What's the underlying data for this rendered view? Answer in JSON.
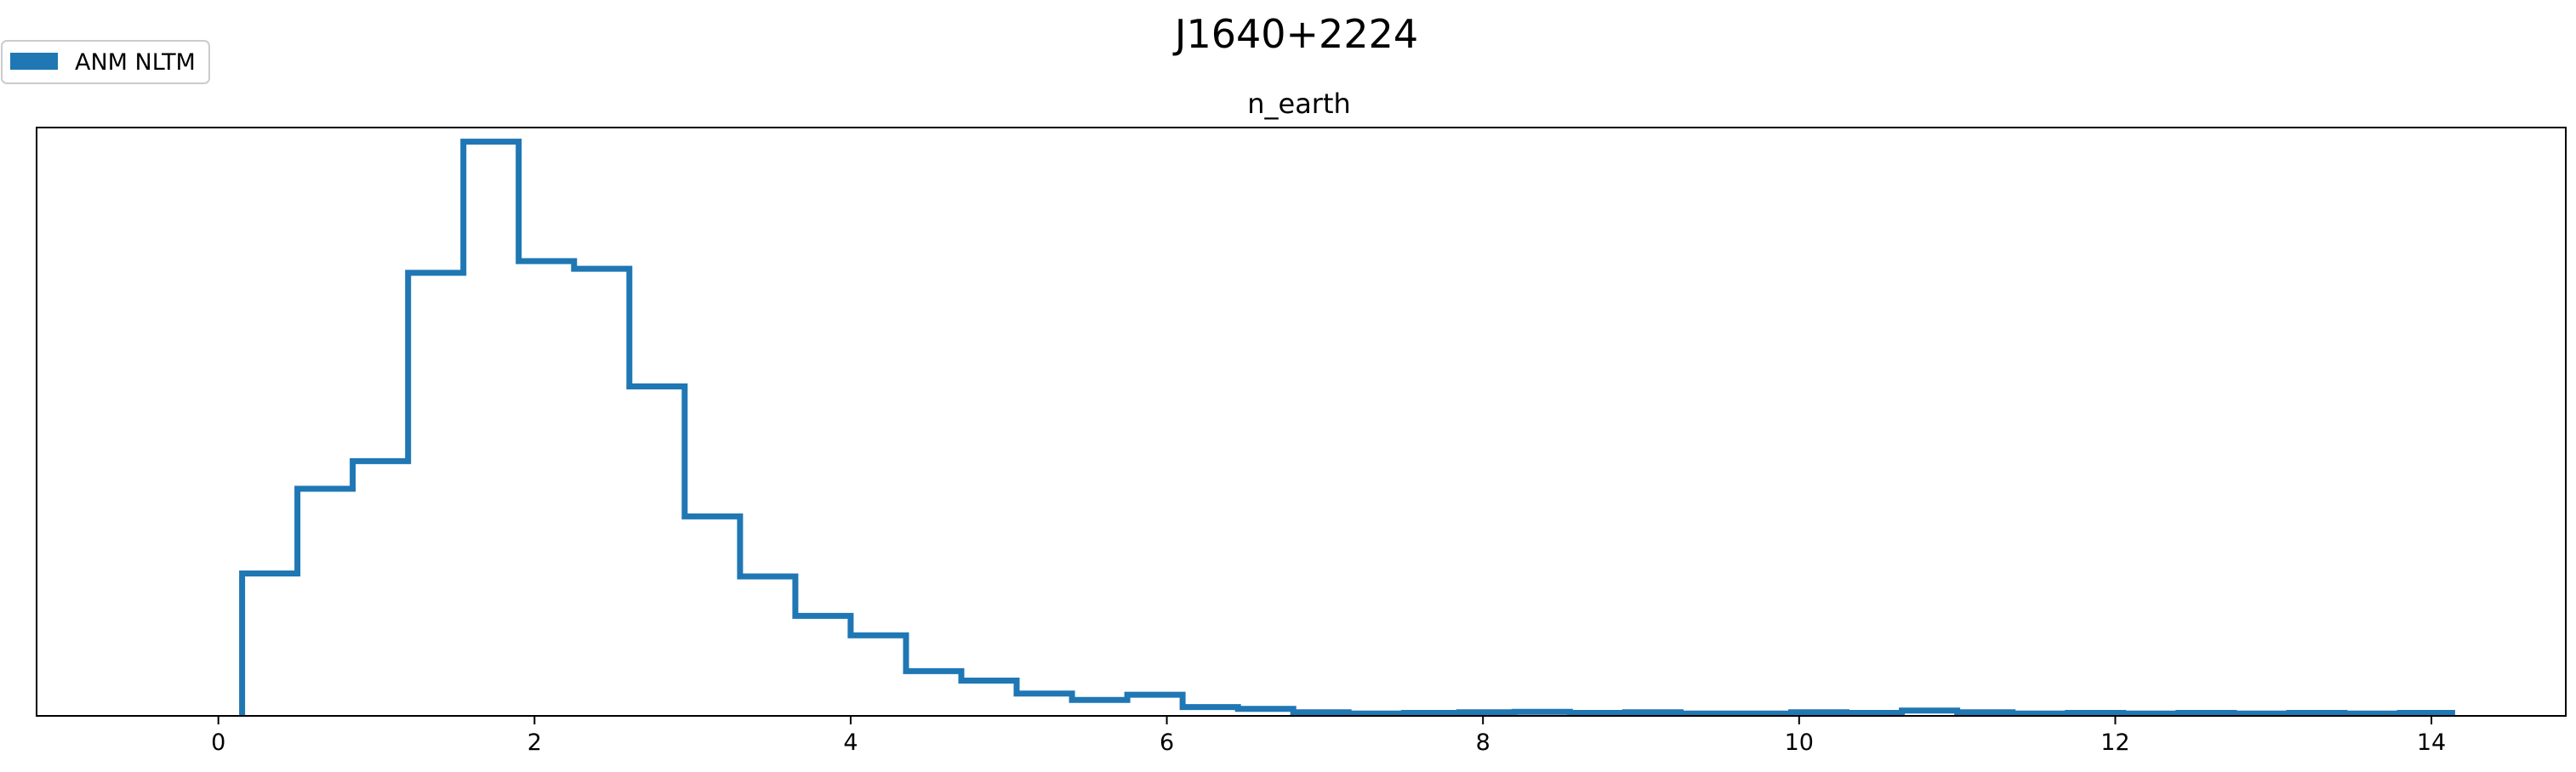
{
  "chart_data": {
    "type": "histogram",
    "title": "J1640+2224",
    "subtitle": "n_earth",
    "xlabel": "",
    "ylabel": "",
    "xlim": [
      -1.15,
      14.85
    ],
    "ylim": [
      0,
      1.0
    ],
    "xticks": [
      0,
      2,
      4,
      6,
      8,
      10,
      12,
      14
    ],
    "yticks_visible": false,
    "grid": false,
    "legend": {
      "placement": "top-left",
      "entries": [
        {
          "label": "ANM NLTM",
          "color": "#1f77b4"
        }
      ]
    },
    "series": [
      {
        "name": "ANM NLTM",
        "color": "#1f77b4",
        "bin_edges": [
          0.15,
          0.5,
          0.85,
          1.2,
          1.55,
          1.9,
          2.25,
          2.6,
          2.95,
          3.3,
          3.65,
          4.0,
          4.35,
          4.7,
          5.05,
          5.4,
          5.75,
          6.1,
          6.45,
          6.8,
          7.15,
          7.5,
          7.85,
          8.2,
          8.55,
          8.9,
          9.25,
          9.6,
          9.95,
          10.3,
          10.65,
          11.0,
          11.35,
          11.7,
          12.05,
          12.4,
          12.75,
          13.1,
          13.45,
          13.8,
          14.15
        ],
        "counts": [
          0.242,
          0.386,
          0.433,
          0.753,
          0.976,
          0.773,
          0.76,
          0.56,
          0.339,
          0.237,
          0.17,
          0.137,
          0.076,
          0.06,
          0.038,
          0.027,
          0.036,
          0.015,
          0.012,
          0.006,
          0.004,
          0.005,
          0.006,
          0.007,
          0.005,
          0.006,
          0.004,
          0.004,
          0.006,
          0.005,
          0.009,
          0.006,
          0.004,
          0.005,
          0.004,
          0.005,
          0.004,
          0.005,
          0.004,
          0.005
        ]
      }
    ]
  }
}
